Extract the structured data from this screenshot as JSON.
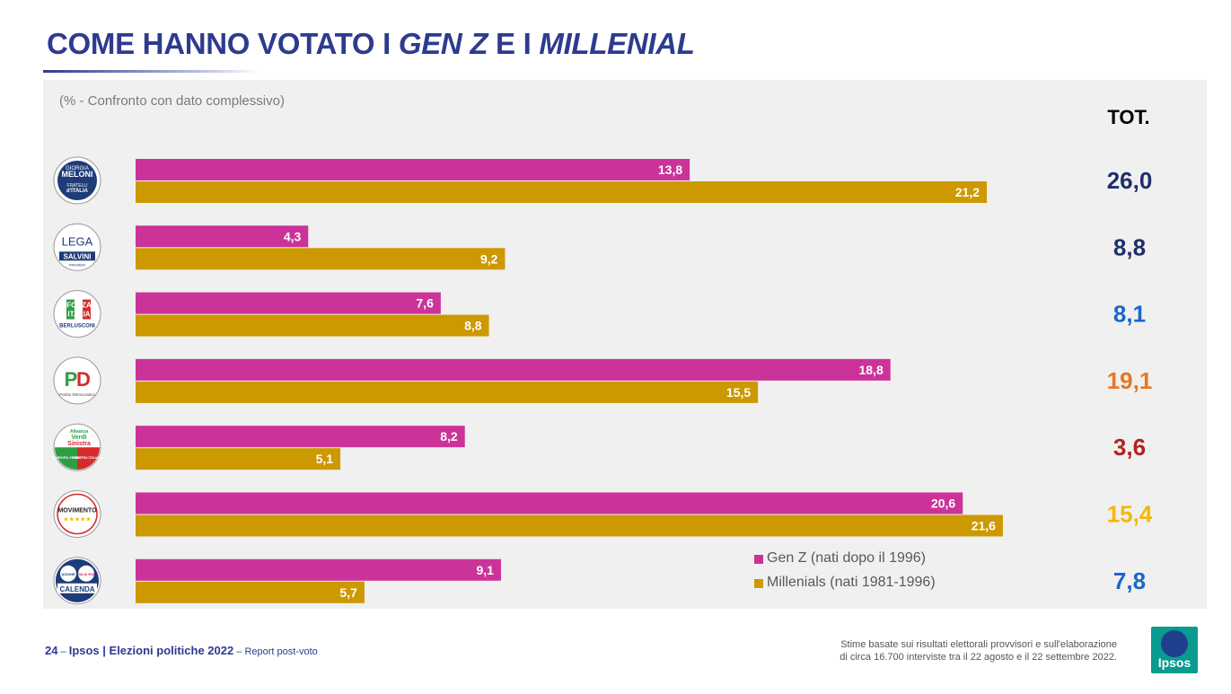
{
  "header": {
    "title_part1": "COME HANNO VOTATO I ",
    "title_genz": "GEN Z",
    "title_part2": " E I ",
    "title_millenial": "MILLENIAL",
    "subtitle": "(% - Confronto con dato complessivo)",
    "tot_label": "TOT."
  },
  "parties": [
    {
      "name": "Fratelli d'Italia",
      "logo_text": [
        "GIORGIA",
        "MELONI",
        "FRATELLI",
        "d'ITALIA"
      ]
    },
    {
      "name": "Lega",
      "logo_text": [
        "LEGA",
        "SALVINI",
        "PREMIER"
      ]
    },
    {
      "name": "Forza Italia",
      "logo_text": [
        "FORZA",
        "ITALIA",
        "BERLUSCONI"
      ]
    },
    {
      "name": "Partito Democratico",
      "logo_text": [
        "PD",
        "Partito Democratico"
      ]
    },
    {
      "name": "Alleanza Verdi Sinistra",
      "logo_text": [
        "Alleanza",
        "Verdi",
        "Sinistra",
        "EUROPA VERDE",
        "SINISTRA ITALIANA"
      ]
    },
    {
      "name": "Movimento 5 Stelle",
      "logo_text": [
        "MOVIMENTO"
      ]
    },
    {
      "name": "Azione - Italia Viva",
      "logo_text": [
        "AZIONE",
        "ITALIA VIVA",
        "CALENDA"
      ]
    }
  ],
  "chart_data": {
    "type": "bar",
    "orientation": "horizontal",
    "categories": [
      "Fratelli d'Italia",
      "Lega",
      "Forza Italia",
      "Partito Democratico",
      "Alleanza Verdi Sinistra",
      "Movimento 5 Stelle",
      "Azione - Italia Viva"
    ],
    "series": [
      {
        "name": "Gen Z (nati dopo il 1996)",
        "color": "#cc3399",
        "values": [
          13.8,
          4.3,
          7.6,
          18.8,
          8.2,
          20.6,
          9.1
        ],
        "labels": [
          "13,8",
          "4,3",
          "7,6",
          "18,8",
          "8,2",
          "20,6",
          "9,1"
        ]
      },
      {
        "name": "Millenials (nati 1981-1996)",
        "color": "#cc9900",
        "values": [
          21.2,
          9.2,
          8.8,
          15.5,
          5.1,
          21.6,
          5.7
        ],
        "labels": [
          "21,2",
          "9,2",
          "8,8",
          "15,5",
          "5,1",
          "21,6",
          "5,7"
        ]
      }
    ],
    "totals": {
      "values": [
        26.0,
        8.8,
        8.1,
        19.1,
        3.6,
        15.4,
        7.8
      ],
      "labels": [
        "26,0",
        "8,8",
        "8,1",
        "19,1",
        "3,6",
        "15,4",
        "7,8"
      ],
      "colors": [
        "#1f2f6b",
        "#1f2f6b",
        "#1a66cc",
        "#e87722",
        "#b22222",
        "#f5b800",
        "#1a66cc"
      ]
    },
    "xlim": [
      0,
      22
    ],
    "title": "COME HANNO VOTATO I GEN Z E I MILLENIAL",
    "legend_position": "bottom-right"
  },
  "footer": {
    "page_number": "24",
    "page_sep": " – ",
    "source": "Ipsos | Elezioni politiche 2022",
    "source_suffix": " – Report post-voto",
    "note_line1": "Stime basate sui risultati elettorali provvisori e sull'elaborazione",
    "note_line2": "di circa 16.700 interviste tra il 22 agosto e il 22 settembre 2022.",
    "brand": "Ipsos"
  }
}
